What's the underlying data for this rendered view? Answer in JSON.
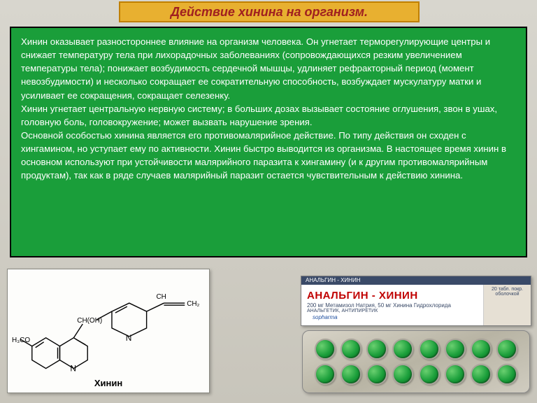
{
  "title": "Действие хинина на организм.",
  "body": "Хинин оказывает разностороннее влияние на организм человека. Он угнетает терморегулирующие центры и снижает температуру тела при лихорадочных заболеваниях (сопровождающихся резким увеличением температуры тела); понижает возбудимость сердечной мышцы, удлиняет рефракторный период (момент невозбудимости) и несколько сокращает ее сократительную способность, возбуждает мускулатуру матки и усиливает ее сокращения, сокращает селезенку.\nХинин угнетает центральную нервную систему; в больших дозах вызывает состояние оглушения, звон в ушах, головную боль, головокружение; может вызвать нарушение зрения.\nОсновной особостью хинина является его противомалярийное действие. По типу действия он сходен с хингамином, но уступает ему по активности. Хинин быстро выводится из организма. В настоящее время хинин в основном используют при устойчивости малярийного паразита к хингамину (и к другим противомалярийным продуктам), так как в ряде случаев малярийный паразит остается чувствительным к действию хинина.",
  "chem": {
    "caption": "Хинин",
    "labels": {
      "n1": "N",
      "n2": "N",
      "choh": "CH(OH)",
      "ch": "CH",
      "ch2": "CH₂",
      "h3co": "H₃CO"
    }
  },
  "drug": {
    "strip": "АНАЛЬГИН - ХИНИН",
    "name": "АНАЛЬГИН - ХИНИН",
    "sub1": "200 мг Метамизол Натрия, 50 мг Хинина Гидрохлорида",
    "sub2": "АНАЛЬГЕТИК, АНТИПИРЕТИК",
    "logo": "sopharma",
    "right1": "20 табл. покр.",
    "right2": "оболочкой"
  },
  "colors": {
    "title_bg": "#e8b030",
    "title_text": "#a02020",
    "box_bg": "#1a9e3a",
    "pill": "#1a9e3a"
  }
}
